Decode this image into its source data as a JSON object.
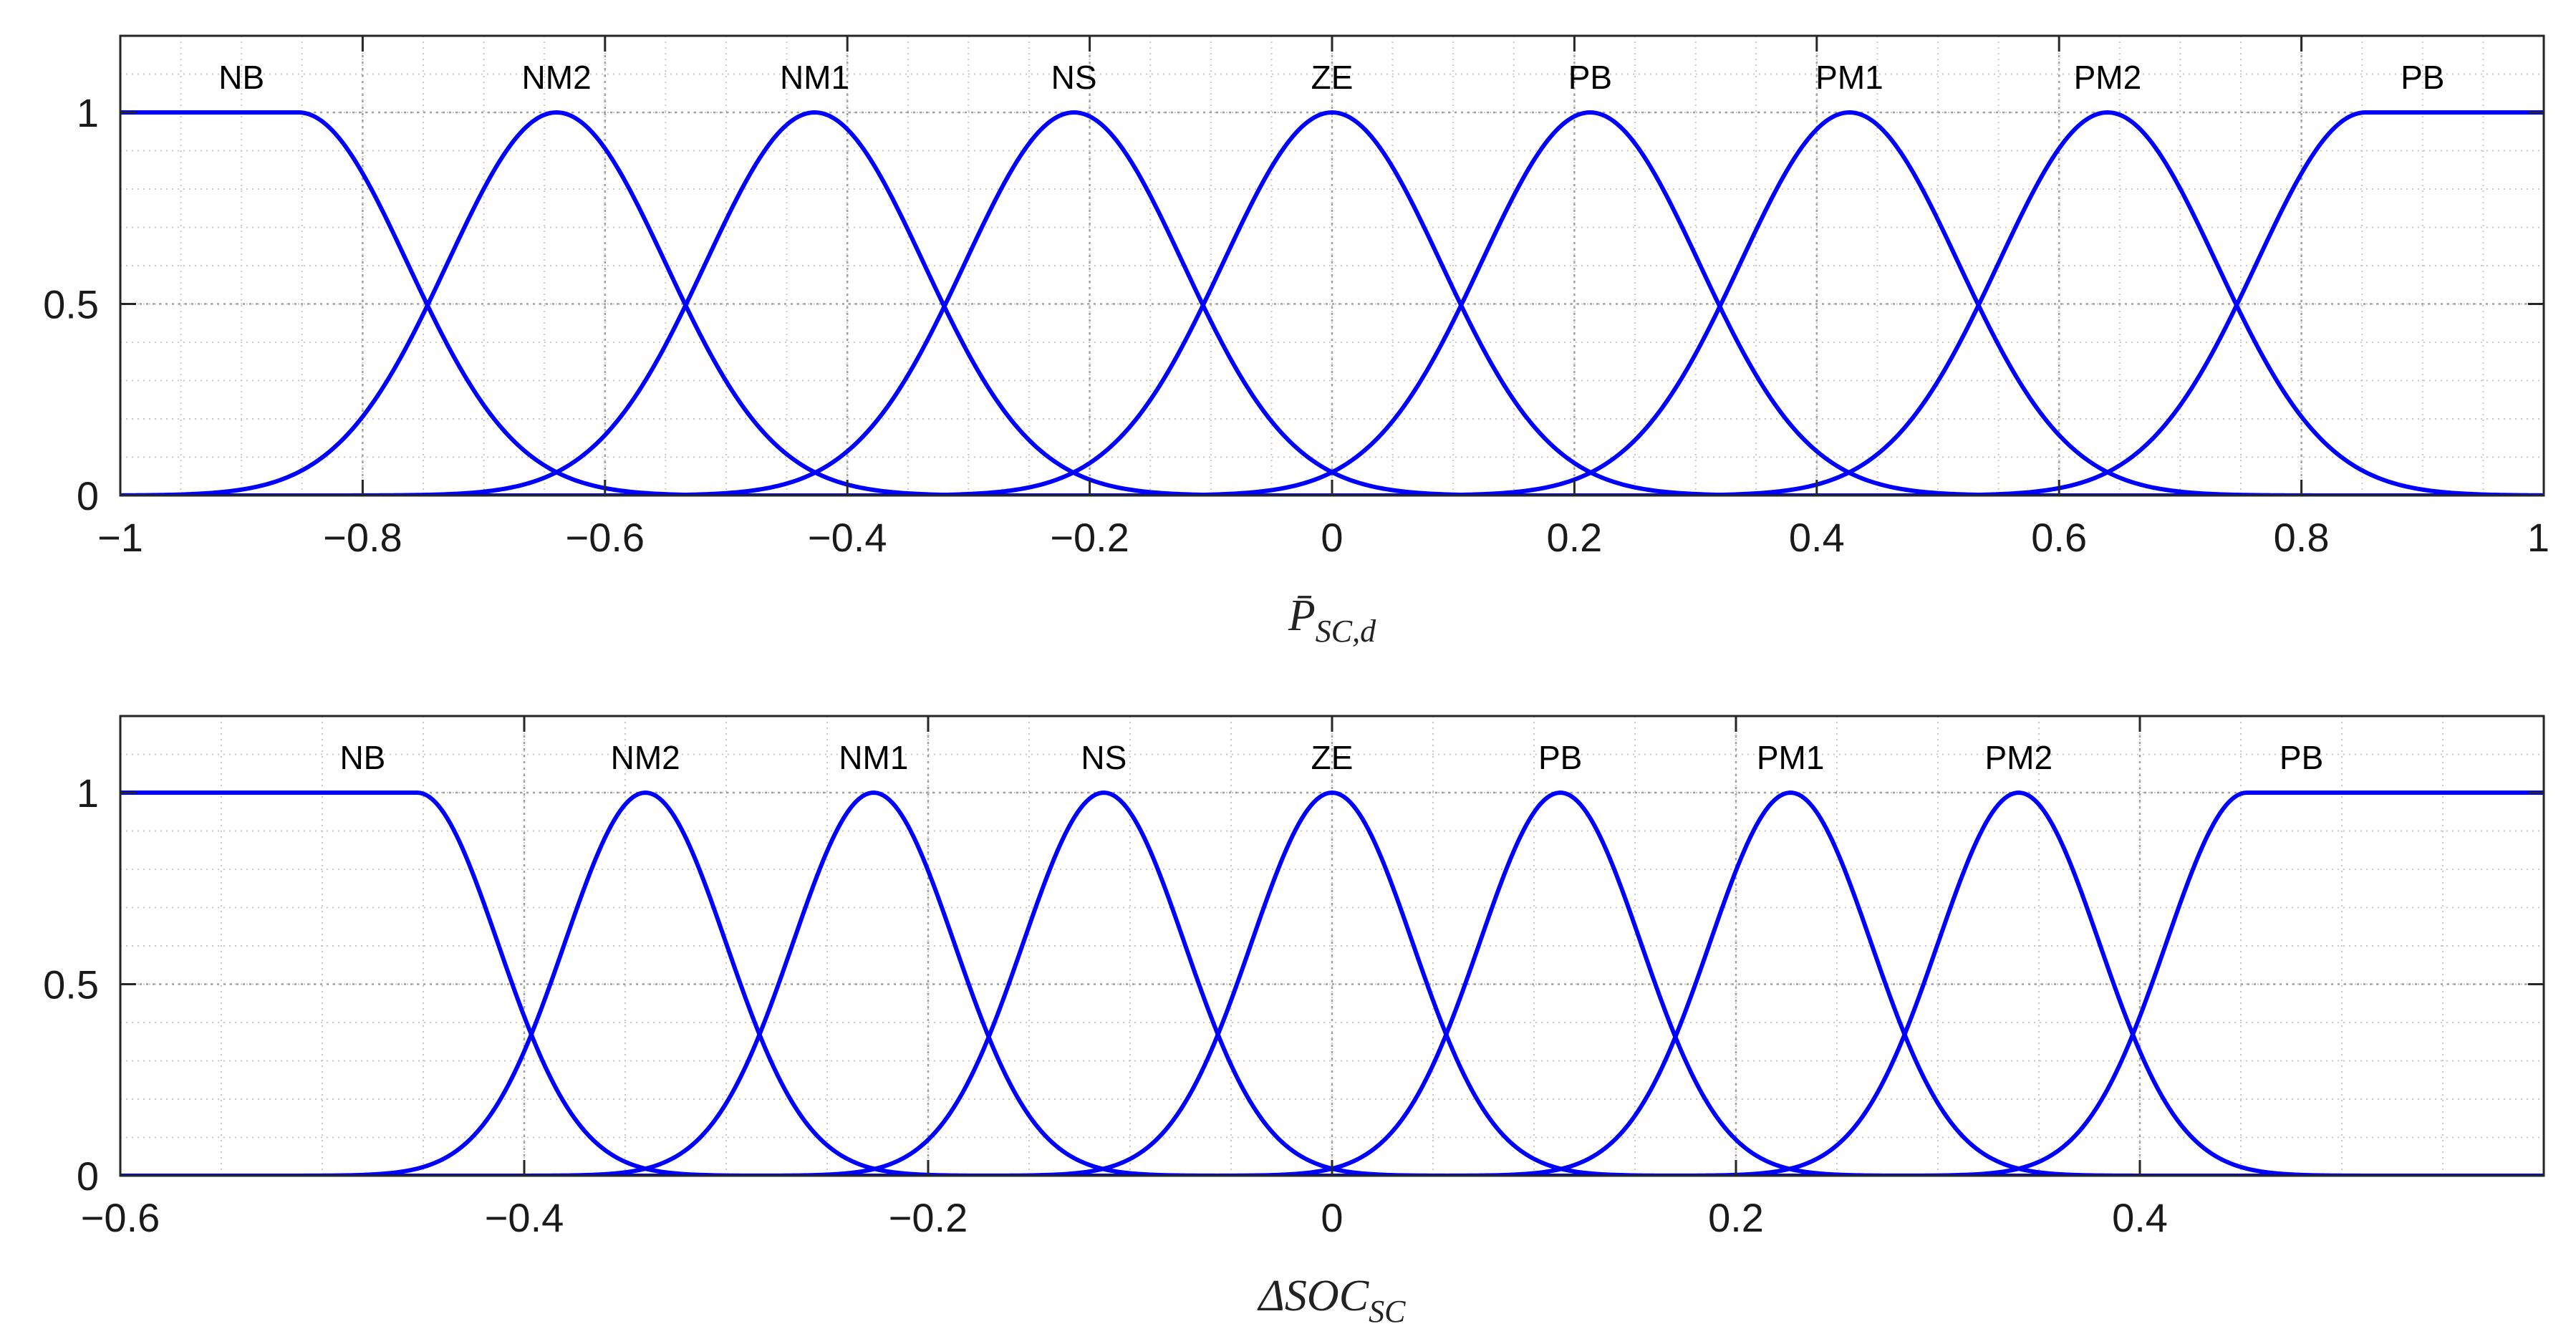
{
  "chart_data": [
    {
      "type": "line",
      "title": "",
      "xlabel": {
        "base": "P̄",
        "sub": "SC,d"
      },
      "ylabel": "",
      "xlim": [
        -1,
        1
      ],
      "ylim": [
        0,
        1.2
      ],
      "grid": true,
      "minor_grid": true,
      "membership_shape": "gaussian",
      "x_ticks": [
        {
          "v": -1,
          "label": "−1"
        },
        {
          "v": -0.8,
          "label": "−0.8"
        },
        {
          "v": -0.6,
          "label": "−0.6"
        },
        {
          "v": -0.4,
          "label": "−0.4"
        },
        {
          "v": -0.2,
          "label": "−0.2"
        },
        {
          "v": 0,
          "label": "0"
        },
        {
          "v": 0.2,
          "label": "0.2"
        },
        {
          "v": 0.4,
          "label": "0.4"
        },
        {
          "v": 0.6,
          "label": "0.6"
        },
        {
          "v": 0.8,
          "label": "0.8"
        },
        {
          "v": 1,
          "label": "1"
        }
      ],
      "y_ticks": [
        {
          "v": 0,
          "label": "0"
        },
        {
          "v": 0.5,
          "label": "0.5"
        },
        {
          "v": 1,
          "label": "1"
        }
      ],
      "series": [
        {
          "name": "NB",
          "kind": "left-shoulder",
          "center": -0.853,
          "sigma": 0.09,
          "label_x": -0.9
        },
        {
          "name": "NM2",
          "kind": "gauss",
          "center": -0.64,
          "sigma": 0.09,
          "label_x": -0.64
        },
        {
          "name": "NM1",
          "kind": "gauss",
          "center": -0.427,
          "sigma": 0.09,
          "label_x": -0.427
        },
        {
          "name": "NS",
          "kind": "gauss",
          "center": -0.213,
          "sigma": 0.09,
          "label_x": -0.213
        },
        {
          "name": "ZE",
          "kind": "gauss",
          "center": 0,
          "sigma": 0.09,
          "label_x": 0
        },
        {
          "name": "PB",
          "kind": "gauss",
          "center": 0.213,
          "sigma": 0.09,
          "label_x": 0.213
        },
        {
          "name": "PM1",
          "kind": "gauss",
          "center": 0.427,
          "sigma": 0.09,
          "label_x": 0.427
        },
        {
          "name": "PM2",
          "kind": "gauss",
          "center": 0.64,
          "sigma": 0.09,
          "label_x": 0.64
        },
        {
          "name": "PB",
          "kind": "right-shoulder",
          "center": 0.853,
          "sigma": 0.09,
          "label_x": 0.9
        }
      ],
      "line_color": "#0000ff"
    },
    {
      "type": "line",
      "title": "",
      "xlabel": {
        "base": "ΔSOC",
        "sub": "SC"
      },
      "ylabel": "",
      "xlim": [
        -0.6,
        0.6
      ],
      "ylim": [
        0,
        1.2
      ],
      "grid": true,
      "minor_grid": true,
      "membership_shape": "gaussian",
      "x_ticks": [
        {
          "v": -0.6,
          "label": "−0.6"
        },
        {
          "v": -0.4,
          "label": "−0.4"
        },
        {
          "v": -0.2,
          "label": "−0.2"
        },
        {
          "v": 0,
          "label": "0"
        },
        {
          "v": 0.2,
          "label": "0.2"
        },
        {
          "v": 0.4,
          "label": "0.4"
        }
      ],
      "y_ticks": [
        {
          "v": 0,
          "label": "0"
        },
        {
          "v": 0.5,
          "label": "0.5"
        },
        {
          "v": 1,
          "label": "1"
        }
      ],
      "series": [
        {
          "name": "NB",
          "kind": "left-shoulder",
          "center": -0.453,
          "sigma": 0.04,
          "label_x": -0.48
        },
        {
          "name": "NM2",
          "kind": "gauss",
          "center": -0.34,
          "sigma": 0.04,
          "label_x": -0.34
        },
        {
          "name": "NM1",
          "kind": "gauss",
          "center": -0.227,
          "sigma": 0.04,
          "label_x": -0.227
        },
        {
          "name": "NS",
          "kind": "gauss",
          "center": -0.113,
          "sigma": 0.04,
          "label_x": -0.113
        },
        {
          "name": "ZE",
          "kind": "gauss",
          "center": 0,
          "sigma": 0.04,
          "label_x": 0
        },
        {
          "name": "PB",
          "kind": "gauss",
          "center": 0.113,
          "sigma": 0.04,
          "label_x": 0.113
        },
        {
          "name": "PM1",
          "kind": "gauss",
          "center": 0.227,
          "sigma": 0.04,
          "label_x": 0.227
        },
        {
          "name": "PM2",
          "kind": "gauss",
          "center": 0.34,
          "sigma": 0.04,
          "label_x": 0.34
        },
        {
          "name": "PB",
          "kind": "right-shoulder",
          "center": 0.453,
          "sigma": 0.04,
          "label_x": 0.48
        }
      ],
      "line_color": "#0000ff"
    }
  ]
}
